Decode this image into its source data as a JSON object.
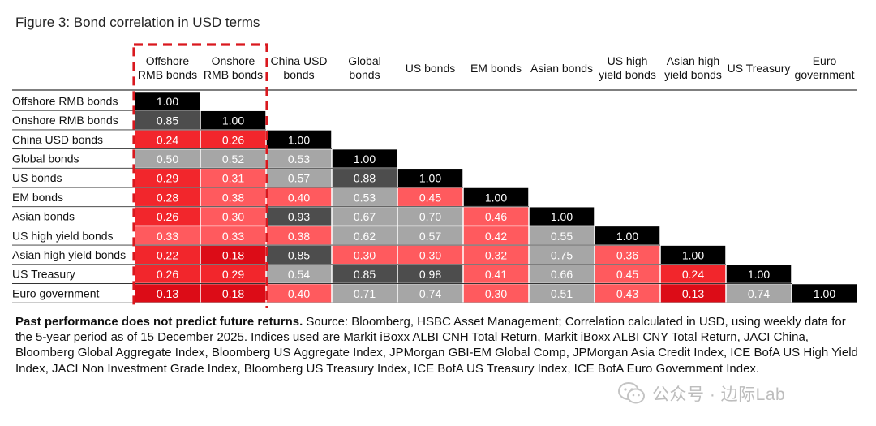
{
  "figure_title": "Figure 3: Bond correlation in USD terms",
  "chart_data": {
    "type": "heatmap",
    "title": "Figure 3: Bond correlation in USD terms",
    "subtitle": "",
    "columns": [
      [
        "Offshore",
        "RMB bonds"
      ],
      [
        "Onshore",
        "RMB bonds"
      ],
      [
        "China USD",
        "bonds"
      ],
      [
        "Global",
        "bonds"
      ],
      [
        "US bonds"
      ],
      [
        "EM bonds"
      ],
      [
        "Asian bonds"
      ],
      [
        "US high",
        "yield bonds"
      ],
      [
        "Asian high",
        "yield bonds"
      ],
      [
        "US Treasury"
      ],
      [
        "Euro",
        "government"
      ]
    ],
    "rows": [
      "Offshore RMB bonds",
      "Onshore RMB bonds",
      "China USD bonds",
      "Global bonds",
      "US bonds",
      "EM bonds",
      "Asian bonds",
      "US high yield bonds",
      "Asian high yield bonds",
      "US Treasury",
      "Euro government"
    ],
    "values": [
      [
        "1.00"
      ],
      [
        "0.85",
        "1.00"
      ],
      [
        "0.24",
        "0.26",
        "1.00"
      ],
      [
        "0.50",
        "0.52",
        "0.53",
        "1.00"
      ],
      [
        "0.29",
        "0.31",
        "0.57",
        "0.88",
        "1.00"
      ],
      [
        "0.28",
        "0.38",
        "0.40",
        "0.53",
        "0.45",
        "1.00"
      ],
      [
        "0.26",
        "0.30",
        "0.93",
        "0.67",
        "0.70",
        "0.46",
        "1.00"
      ],
      [
        "0.33",
        "0.33",
        "0.38",
        "0.62",
        "0.57",
        "0.42",
        "0.55",
        "1.00"
      ],
      [
        "0.22",
        "0.18",
        "0.85",
        "0.30",
        "0.30",
        "0.32",
        "0.75",
        "0.36",
        "1.00"
      ],
      [
        "0.26",
        "0.29",
        "0.54",
        "0.85",
        "0.98",
        "0.41",
        "0.66",
        "0.45",
        "0.24",
        "1.00"
      ],
      [
        "0.13",
        "0.18",
        "0.40",
        "0.71",
        "0.74",
        "0.30",
        "0.51",
        "0.43",
        "0.13",
        "0.74",
        "1.00"
      ]
    ],
    "highlighted_columns": [
      "Offshore RMB bonds",
      "Onshore RMB bonds"
    ],
    "highlight_color": "#d9181e",
    "colors": {
      "diagonal": "#000000",
      "very_high": "#4d4d4d",
      "high": "#a6a6a6",
      "medium": "#ff5a5e",
      "low": "#f2262c",
      "very_low": "#dc0c17"
    },
    "color_thresholds": {
      "very_high": 0.85,
      "high": 0.5,
      "medium": 0.3,
      "low": 0.2
    }
  },
  "footnote": {
    "bold": "Past performance does not predict future returns.",
    "text": " Source: Bloomberg, HSBC Asset Management; Correlation calculated in USD, using weekly data for the 5-year period as of 15 December 2025. Indices used are Markit iBoxx ALBI CNH Total Return, Markit iBoxx ALBI CNY Total Return, JACI China, Bloomberg Global Aggregate Index, Bloomberg US Aggregate Index, JPMorgan GBI-EM Global Comp, JPMorgan Asia Credit Index, ICE BofA US High Yield Index, JACI Non Investment Grade Index, Bloomberg US Treasury Index, ICE BofA US Treasury Index, ICE BofA Euro Government Index."
  },
  "watermark": {
    "text": "公众号 · 边际Lab",
    "icon": "wechat-icon"
  }
}
